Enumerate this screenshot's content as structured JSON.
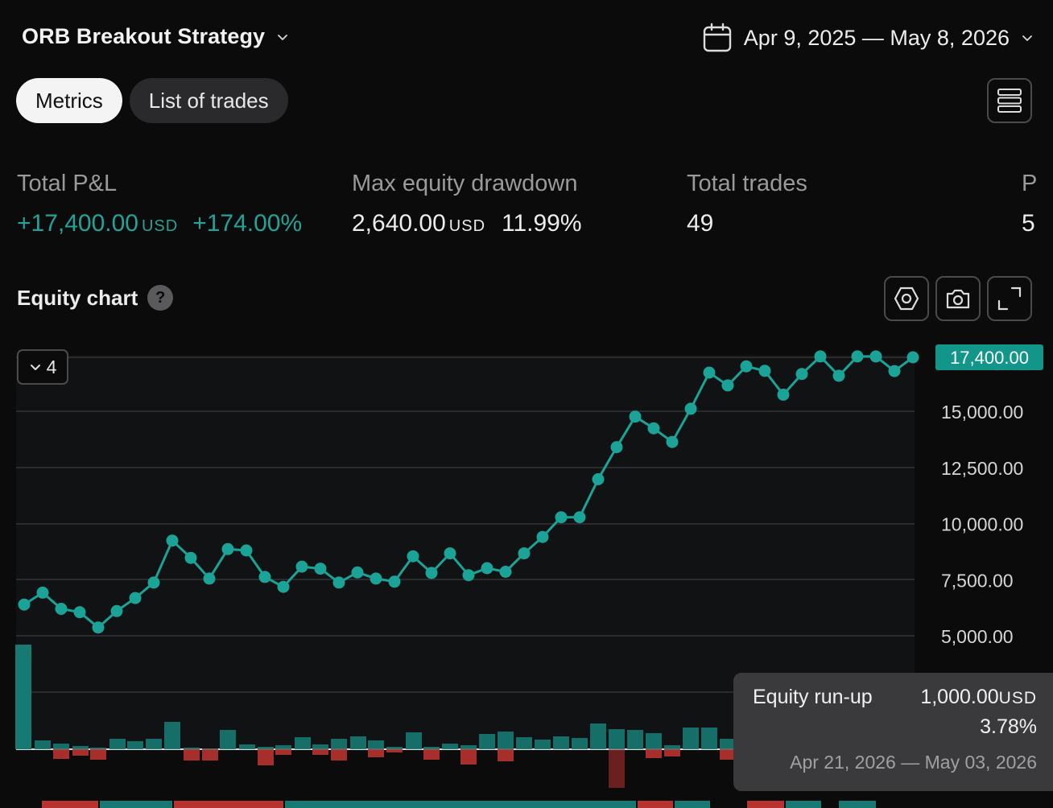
{
  "header": {
    "strategy_name": "ORB Breakout Strategy",
    "date_range": "Apr 9, 2025 — May 8, 2026"
  },
  "tabs": [
    {
      "label": "Metrics",
      "active": true
    },
    {
      "label": "List of trades",
      "active": false
    }
  ],
  "metrics": {
    "total_pnl": {
      "label": "Total P&L",
      "value": "+17,400.00",
      "unit": "USD",
      "percent": "+174.00%"
    },
    "max_drawdown": {
      "label": "Max equity drawdown",
      "value": "2,640.00",
      "unit": "USD",
      "percent": "11.99%"
    },
    "total_trades": {
      "label": "Total trades",
      "value": "49"
    },
    "partial": {
      "label": "P",
      "value": "5"
    }
  },
  "equity_chart": {
    "title": "Equity chart",
    "help_icon": "question-icon",
    "collapse_count": "4",
    "colors": {
      "line": "#1aa396",
      "positive": "#167a72",
      "negative": "#b8332f",
      "grid": "#2b2b2e",
      "last_label_bg": "#12968a"
    }
  },
  "chart_data": {
    "type": "line",
    "y_ticks": [
      "15,000.00",
      "12,500.00",
      "10,000.00",
      "7,500.00",
      "5,000.00"
    ],
    "y_tick_values": [
      15000,
      12500,
      10000,
      7500,
      5000
    ],
    "last_value_label": "17,400.00",
    "ylim": [
      2500,
      17400
    ],
    "equity": [
      6390,
      6920,
      6200,
      6050,
      5370,
      6100,
      6680,
      7370,
      9240,
      8470,
      7550,
      8860,
      8800,
      7620,
      7180,
      8080,
      7990,
      7370,
      7820,
      7550,
      7410,
      8540,
      7800,
      8670,
      7700,
      8010,
      7850,
      8670,
      9400,
      10280,
      10280,
      11970,
      13400,
      14760,
      14240,
      13630,
      15110,
      16720,
      16150,
      17000,
      16800,
      15740,
      16660,
      17440,
      16580,
      17440,
      17440,
      16790,
      17400
    ],
    "runup_bars": [
      {
        "x": 29,
        "top": 801
      },
      {
        "x": 53,
        "top": 920
      },
      {
        "x": 76,
        "top": 924
      },
      {
        "x": 100,
        "top": 927
      },
      {
        "x": 122,
        "top": 929
      },
      {
        "x": 146,
        "top": 918
      },
      {
        "x": 168,
        "top": 921
      },
      {
        "x": 191,
        "top": 918
      },
      {
        "x": 214,
        "top": 897
      },
      {
        "x": 238,
        "top": 929
      },
      {
        "x": 261,
        "top": 930
      },
      {
        "x": 283,
        "top": 907
      },
      {
        "x": 307,
        "top": 925
      },
      {
        "x": 330,
        "top": 928
      },
      {
        "x": 352,
        "top": 926
      },
      {
        "x": 376,
        "top": 916
      },
      {
        "x": 398,
        "top": 925
      },
      {
        "x": 421,
        "top": 918
      },
      {
        "x": 445,
        "top": 915
      },
      {
        "x": 467,
        "top": 920
      },
      {
        "x": 490,
        "top": 928
      },
      {
        "x": 514,
        "top": 910
      },
      {
        "x": 536,
        "top": 928
      },
      {
        "x": 559,
        "top": 924
      },
      {
        "x": 582,
        "top": 926
      },
      {
        "x": 605,
        "top": 912
      },
      {
        "x": 628,
        "top": 909
      },
      {
        "x": 651,
        "top": 916
      },
      {
        "x": 674,
        "top": 919
      },
      {
        "x": 697,
        "top": 915
      },
      {
        "x": 720,
        "top": 917
      },
      {
        "x": 743,
        "top": 899
      },
      {
        "x": 766,
        "top": 906
      },
      {
        "x": 789,
        "top": 907
      },
      {
        "x": 812,
        "top": 911
      },
      {
        "x": 835,
        "top": 926
      },
      {
        "x": 858,
        "top": 904
      },
      {
        "x": 881,
        "top": 904
      },
      {
        "x": 904,
        "top": 918
      }
    ],
    "drawdown_bars": [
      {
        "x": 76,
        "bottom": 943
      },
      {
        "x": 100,
        "bottom": 939
      },
      {
        "x": 122,
        "bottom": 944
      },
      {
        "x": 238,
        "bottom": 945
      },
      {
        "x": 261,
        "bottom": 945
      },
      {
        "x": 330,
        "bottom": 951
      },
      {
        "x": 352,
        "bottom": 938
      },
      {
        "x": 398,
        "bottom": 938
      },
      {
        "x": 421,
        "bottom": 945
      },
      {
        "x": 467,
        "bottom": 941
      },
      {
        "x": 490,
        "bottom": 935
      },
      {
        "x": 536,
        "bottom": 944
      },
      {
        "x": 582,
        "bottom": 950
      },
      {
        "x": 628,
        "bottom": 946
      },
      {
        "x": 766,
        "bottom": 979
      },
      {
        "x": 812,
        "bottom": 942
      },
      {
        "x": 835,
        "bottom": 940
      },
      {
        "x": 904,
        "bottom": 944
      }
    ]
  },
  "tooltip": {
    "label": "Equity run-up",
    "value": "1,000.00",
    "unit": "USD",
    "percent": "3.78%",
    "dates": "Apr 21, 2026 — May 03, 2026"
  }
}
